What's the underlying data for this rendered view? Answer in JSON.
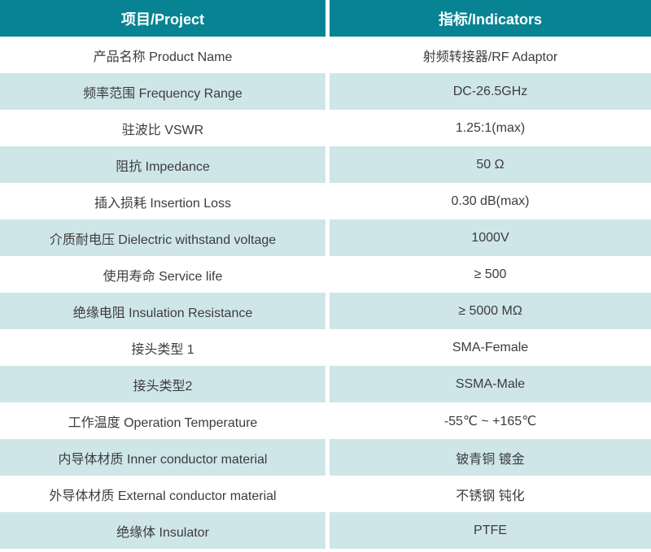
{
  "table": {
    "header": {
      "project": "项目/Project",
      "indicators": "指标/Indicators"
    },
    "rows": [
      {
        "label": "产品名称 Product Name",
        "value": "射频转接器/RF Adaptor"
      },
      {
        "label": "频率范围 Frequency Range",
        "value": "DC-26.5GHz"
      },
      {
        "label": "驻波比 VSWR",
        "value": "1.25:1(max)"
      },
      {
        "label": "阻抗 Impedance",
        "value": "50 Ω"
      },
      {
        "label": "插入损耗 Insertion Loss",
        "value": "0.30 dB(max)"
      },
      {
        "label": "介质耐电压 Dielectric withstand voltage",
        "value": "1000V"
      },
      {
        "label": "使用寿命 Service life",
        "value": "≥ 500"
      },
      {
        "label": "绝缘电阻 Insulation Resistance",
        "value": "≥ 5000 MΩ"
      },
      {
        "label": "接头类型 1",
        "value": "SMA-Female"
      },
      {
        "label": "接头类型2",
        "value": "SSMA-Male"
      },
      {
        "label": "工作温度 Operation Temperature",
        "value": "-55℃ ~ +165℃"
      },
      {
        "label": "内导体材质 Inner conductor material",
        "value": "铍青铜 镀金"
      },
      {
        "label": "外导体材质 External conductor material",
        "value": "不锈钢 钝化"
      },
      {
        "label": "绝缘体 Insulator",
        "value": "PTFE"
      }
    ],
    "colors": {
      "header_bg": "#088394",
      "header_text": "#ffffff",
      "row_bg": "#ffffff",
      "row_alt_bg": "#cfe6e9",
      "body_text": "#3c3c3c"
    }
  }
}
